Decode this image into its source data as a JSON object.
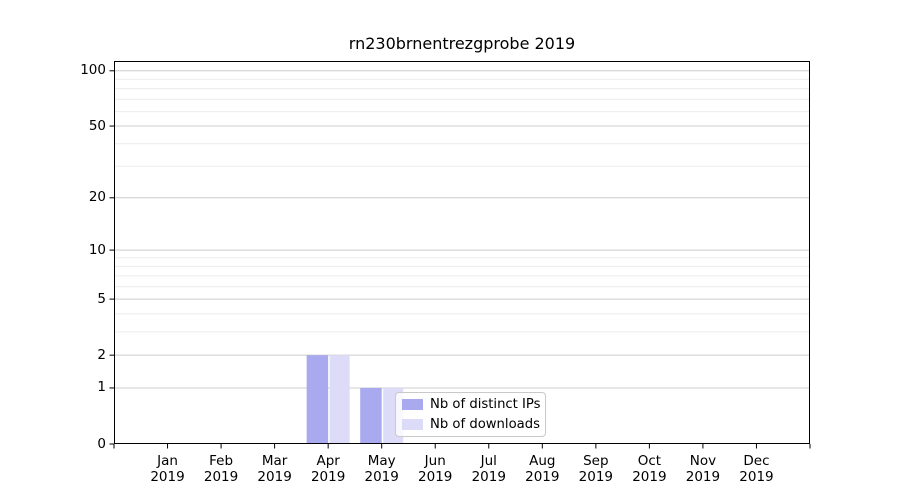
{
  "chart_data": {
    "type": "bar",
    "title": "rn230brnentrezgprobe 2019",
    "x_months": [
      "Jan",
      "Feb",
      "Mar",
      "Apr",
      "May",
      "Jun",
      "Jul",
      "Aug",
      "Sep",
      "Oct",
      "Nov",
      "Dec"
    ],
    "x_year": "2019",
    "series": [
      {
        "name": "Nb of distinct IPs",
        "color": "#a9a9ef",
        "values": [
          0,
          0,
          0,
          2,
          1,
          0,
          0,
          0,
          0,
          0,
          0,
          0
        ]
      },
      {
        "name": "Nb of downloads",
        "color": "#dcdcf8",
        "values": [
          0,
          0,
          0,
          2,
          1,
          0,
          0,
          0,
          0,
          0,
          0,
          0
        ]
      }
    ],
    "y_scale": "log1p",
    "y_major_ticks": [
      0,
      1,
      2,
      5,
      10,
      20,
      50,
      100
    ],
    "y_minor_gridlines": [
      3,
      4,
      6,
      7,
      8,
      9,
      30,
      40,
      60,
      70,
      80,
      90
    ],
    "ylim": [
      0,
      113
    ],
    "grid": true,
    "legend_position": "lower center-right inside plot"
  },
  "colors": {
    "background": "#ffffff",
    "axis": "#000000",
    "grid_major": "#cccccc",
    "grid_minor": "#ebebeb",
    "legend_border": "#c9c9c9",
    "legend_background": "#ffffff"
  }
}
